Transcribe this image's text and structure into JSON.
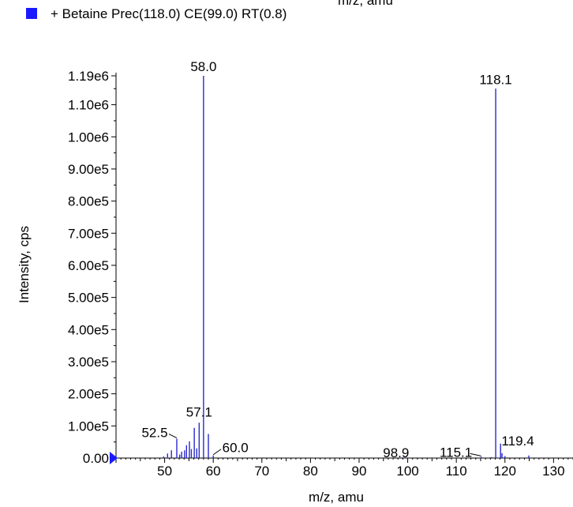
{
  "legend": {
    "top_text": "m/z, amu",
    "label": "+ Betaine Prec(118.0) CE(99.0) RT(0.8)",
    "swatch_color": "#1a1aff"
  },
  "chart_data": {
    "type": "bar",
    "xlabel": "m/z, amu",
    "ylabel": "Intensity, cps",
    "xlim": [
      40,
      134
    ],
    "ylim": [
      0,
      1190000
    ],
    "series_color": "#2a2acc",
    "x_ticks": [
      50,
      60,
      70,
      80,
      90,
      100,
      110,
      120,
      130
    ],
    "y_ticks": [
      {
        "value": 0,
        "label": "0.00"
      },
      {
        "value": 100000,
        "label": "1.00e5"
      },
      {
        "value": 200000,
        "label": "2.00e5"
      },
      {
        "value": 300000,
        "label": "3.00e5"
      },
      {
        "value": 400000,
        "label": "4.00e5"
      },
      {
        "value": 500000,
        "label": "5.00e5"
      },
      {
        "value": 600000,
        "label": "6.00e5"
      },
      {
        "value": 700000,
        "label": "7.00e5"
      },
      {
        "value": 800000,
        "label": "8.00e5"
      },
      {
        "value": 900000,
        "label": "9.00e5"
      },
      {
        "value": 1000000,
        "label": "1.00e6"
      },
      {
        "value": 1100000,
        "label": "1.10e6"
      },
      {
        "value": 1190000,
        "label": "1.19e6"
      }
    ],
    "peaks": [
      {
        "mz": 49.8,
        "intensity": 5000
      },
      {
        "mz": 50.6,
        "intensity": 14000
      },
      {
        "mz": 51.4,
        "intensity": 24000
      },
      {
        "mz": 52.5,
        "intensity": 60000
      },
      {
        "mz": 53.1,
        "intensity": 11000
      },
      {
        "mz": 53.5,
        "intensity": 20000
      },
      {
        "mz": 54.1,
        "intensity": 24000
      },
      {
        "mz": 54.5,
        "intensity": 40000
      },
      {
        "mz": 55.1,
        "intensity": 52000
      },
      {
        "mz": 55.5,
        "intensity": 28000
      },
      {
        "mz": 56.1,
        "intensity": 94000
      },
      {
        "mz": 56.6,
        "intensity": 30000
      },
      {
        "mz": 57.1,
        "intensity": 110000
      },
      {
        "mz": 58.0,
        "intensity": 1190000
      },
      {
        "mz": 59.0,
        "intensity": 75000
      },
      {
        "mz": 60.0,
        "intensity": 8000
      },
      {
        "mz": 98.9,
        "intensity": 2000
      },
      {
        "mz": 115.1,
        "intensity": 4000
      },
      {
        "mz": 117.2,
        "intensity": 3000
      },
      {
        "mz": 118.1,
        "intensity": 1150000
      },
      {
        "mz": 119.1,
        "intensity": 45000
      },
      {
        "mz": 119.4,
        "intensity": 15000
      },
      {
        "mz": 120.0,
        "intensity": 6000
      },
      {
        "mz": 124.9,
        "intensity": 8000
      }
    ],
    "annotations": [
      {
        "text": "58.0",
        "mz": 58.0,
        "intensity": 1190000
      },
      {
        "text": "118.1",
        "mz": 118.1,
        "intensity": 1150000
      },
      {
        "text": "57.1",
        "mz": 57.1,
        "intensity": 110000
      },
      {
        "text": "52.5",
        "mz": 52.5,
        "intensity": 60000
      },
      {
        "text": "119.4",
        "mz": 119.4,
        "intensity": 15000
      },
      {
        "text": "60.0",
        "mz": 60.0,
        "intensity": 8000
      },
      {
        "text": "98.9",
        "mz": 98.9,
        "intensity": 2000
      },
      {
        "text": "115.1",
        "mz": 115.1,
        "intensity": 4000
      }
    ],
    "marker_color": "#1a1aff"
  }
}
